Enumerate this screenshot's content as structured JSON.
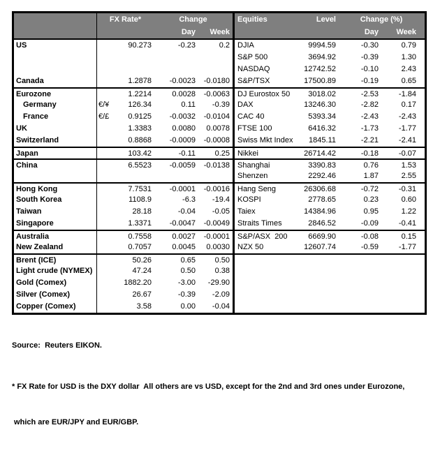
{
  "colors": {
    "header_bg": "#7f7f7f",
    "header_text": "#ffffff",
    "border": "#000000",
    "background": "#ffffff"
  },
  "table": {
    "header": {
      "fx_rate": "FX Rate*",
      "change": "Change",
      "day": "Day",
      "week": "Week",
      "equities": "Equities",
      "level": "Level",
      "change_pct": "Change (%)",
      "day2": "Day",
      "week2": "Week"
    },
    "rows": [
      {
        "sep": false,
        "indent": false,
        "left": {
          "name": "US",
          "sym": "",
          "rate": "90.273",
          "day": "-0.23",
          "week": "0.2"
        },
        "right": {
          "name": "DJIA",
          "level": "9994.59",
          "day": "-0.30",
          "week": "0.79"
        }
      },
      {
        "sep": false,
        "indent": false,
        "left": {
          "name": "",
          "sym": "",
          "rate": "",
          "day": "",
          "week": ""
        },
        "right": {
          "name": "S&P 500",
          "level": "3694.92",
          "day": "-0.39",
          "week": "1.30"
        }
      },
      {
        "sep": false,
        "indent": false,
        "left": {
          "name": "",
          "sym": "",
          "rate": "",
          "day": "",
          "week": ""
        },
        "right": {
          "name": "NASDAQ",
          "level": "12742.52",
          "day": "-0.10",
          "week": "2.43"
        }
      },
      {
        "sep": false,
        "indent": false,
        "left": {
          "name": "Canada",
          "sym": "",
          "rate": "1.2878",
          "day": "-0.0023",
          "week": "-0.0180"
        },
        "right": {
          "name": "S&P/TSX",
          "level": "17500.89",
          "day": "-0.19",
          "week": "0.65"
        }
      },
      {
        "sep": true,
        "indent": false,
        "left": {
          "name": "Eurozone",
          "sym": "",
          "rate": "1.2214",
          "day": "0.0028",
          "week": "-0.0063"
        },
        "right": {
          "name": "DJ Eurostox 50",
          "level": "3018.02",
          "day": "-2.53",
          "week": "-1.84"
        }
      },
      {
        "sep": false,
        "indent": true,
        "left": {
          "name": "Germany",
          "sym": "€/¥",
          "rate": "126.34",
          "day": "0.11",
          "week": "-0.39"
        },
        "right": {
          "name": "DAX",
          "level": "13246.30",
          "day": "-2.82",
          "week": "0.17"
        }
      },
      {
        "sep": false,
        "indent": true,
        "left": {
          "name": "France",
          "sym": "€/£",
          "rate": "0.9125",
          "day": "-0.0032",
          "week": "-0.0104"
        },
        "right": {
          "name": "CAC 40",
          "level": "5393.34",
          "day": "-2.43",
          "week": "-2.43"
        }
      },
      {
        "sep": false,
        "indent": false,
        "left": {
          "name": "UK",
          "sym": "",
          "rate": "1.3383",
          "day": "0.0080",
          "week": "0.0078"
        },
        "right": {
          "name": "FTSE 100",
          "level": "6416.32",
          "day": "-1.73",
          "week": "-1.77"
        }
      },
      {
        "sep": false,
        "indent": false,
        "left": {
          "name": "Switzerland",
          "sym": "",
          "rate": "0.8868",
          "day": "-0.0009",
          "week": "-0.0008"
        },
        "right": {
          "name": "Swiss Mkt Index",
          "level": "1845.11",
          "day": "-2.21",
          "week": "-2.41"
        }
      },
      {
        "sep": true,
        "indent": false,
        "left": {
          "name": "Japan",
          "sym": "",
          "rate": "103.42",
          "day": "-0.11",
          "week": "0.25"
        },
        "right": {
          "name": "Nikkei",
          "level": "26714.42",
          "day": "-0.18",
          "week": "-0.07"
        }
      },
      {
        "sep": true,
        "indent": false,
        "left": {
          "name": "China",
          "sym": "",
          "rate": "6.5523",
          "day": "-0.0059",
          "week": "-0.0138"
        },
        "right": {
          "name": "Shanghai",
          "level": "3390.83",
          "day": "0.76",
          "week": "1.53"
        }
      },
      {
        "sep": false,
        "indent": false,
        "left": {
          "name": "",
          "sym": "",
          "rate": "",
          "day": "",
          "week": ""
        },
        "right": {
          "name": "Shenzen",
          "level": "2292.46",
          "day": "1.87",
          "week": "2.55"
        }
      },
      {
        "sep": true,
        "indent": false,
        "left": {
          "name": "Hong Kong",
          "sym": "",
          "rate": "7.7531",
          "day": "-0.0001",
          "week": "-0.0016"
        },
        "right": {
          "name": "Hang Seng",
          "level": "26306.68",
          "day": "-0.72",
          "week": "-0.31"
        }
      },
      {
        "sep": false,
        "indent": false,
        "left": {
          "name": "South Korea",
          "sym": "",
          "rate": "1108.9",
          "day": "-6.3",
          "week": "-19.4"
        },
        "right": {
          "name": "KOSPI",
          "level": "2778.65",
          "day": "0.23",
          "week": "0.60"
        }
      },
      {
        "sep": false,
        "indent": false,
        "left": {
          "name": "Taiwan",
          "sym": "",
          "rate": "28.18",
          "day": "-0.04",
          "week": "-0.05"
        },
        "right": {
          "name": "Taiex",
          "level": "14384.96",
          "day": "0.95",
          "week": "1.22"
        }
      },
      {
        "sep": false,
        "indent": false,
        "left": {
          "name": "Singapore",
          "sym": "",
          "rate": "1.3371",
          "day": "-0.0047",
          "week": "-0.0049"
        },
        "right": {
          "name": "Straits Times",
          "level": "2846.52",
          "day": "-0.09",
          "week": "-0.41"
        }
      },
      {
        "sep": true,
        "indent": false,
        "left": {
          "name": "Australia",
          "sym": "",
          "rate": "0.7558",
          "day": "0.0027",
          "week": "-0.0001"
        },
        "right": {
          "name": "S&P/ASX  200",
          "level": "6669.90",
          "day": "-0.08",
          "week": "0.15"
        }
      },
      {
        "sep": false,
        "indent": false,
        "left": {
          "name": "New Zealand",
          "sym": "",
          "rate": "0.7057",
          "day": "0.0045",
          "week": "0.0030"
        },
        "right": {
          "name": "NZX 50",
          "level": "12607.74",
          "day": "-0.59",
          "week": "-1.77"
        }
      },
      {
        "sep": true,
        "indent": false,
        "left": {
          "name": "Brent (ICE)",
          "sym": "",
          "rate": "50.26",
          "day": "0.65",
          "week": "0.50"
        },
        "right": {
          "name": "",
          "level": "",
          "day": "",
          "week": ""
        }
      },
      {
        "sep": false,
        "indent": false,
        "left": {
          "name": "Light crude (NYMEX)",
          "sym": "",
          "rate": "47.24",
          "day": "0.50",
          "week": "0.38"
        },
        "right": {
          "name": "",
          "level": "",
          "day": "",
          "week": ""
        }
      },
      {
        "sep": false,
        "indent": false,
        "left": {
          "name": "Gold (Comex)",
          "sym": "",
          "rate": "1882.20",
          "day": "-3.00",
          "week": "-29.90"
        },
        "right": {
          "name": "",
          "level": "",
          "day": "",
          "week": ""
        }
      },
      {
        "sep": false,
        "indent": false,
        "left": {
          "name": "Silver (Comex)",
          "sym": "",
          "rate": "26.67",
          "day": "-0.39",
          "week": "-2.09"
        },
        "right": {
          "name": "",
          "level": "",
          "day": "",
          "week": ""
        }
      },
      {
        "sep": false,
        "indent": false,
        "left": {
          "name": "Copper (Comex)",
          "sym": "",
          "rate": "3.58",
          "day": "0.00",
          "week": "-0.04"
        },
        "right": {
          "name": "",
          "level": "",
          "day": "",
          "week": ""
        }
      }
    ]
  },
  "footer": {
    "source": "Source:  Reuters EIKON.",
    "note_line1": "* FX Rate for USD is the DXY dollar  All others are vs USD, except for the 2nd and 3rd ones under Eurozone,",
    "note_line2": " which are EUR/JPY and EUR/GBP."
  }
}
